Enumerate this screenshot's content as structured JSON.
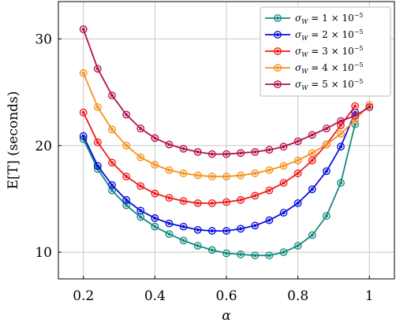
{
  "chart_data": {
    "type": "line",
    "xlabel": "α",
    "ylabel": "E[T] (seconds)",
    "xlim": [
      0.13,
      1.07
    ],
    "ylim": [
      7.5,
      33.5
    ],
    "xticks": [
      0.2,
      0.4,
      0.6,
      0.8,
      1
    ],
    "xtick_labels": [
      "0.2",
      "0.4",
      "0.6",
      "0.8",
      "1"
    ],
    "yticks": [
      10,
      20,
      30
    ],
    "ytick_labels": [
      "10",
      "20",
      "30"
    ],
    "grid": true,
    "legend_position": "top-right",
    "x": [
      0.2,
      0.24,
      0.28,
      0.32,
      0.36,
      0.4,
      0.44,
      0.48,
      0.52,
      0.56,
      0.6,
      0.64,
      0.68,
      0.72,
      0.76,
      0.8,
      0.84,
      0.88,
      0.92,
      0.96,
      1
    ],
    "series": [
      {
        "name": "σ_W = 1 × 10^−5",
        "legend": {
          "base": "σ",
          "sub": "W",
          "mid": " = 1 × 10",
          "sup": "−5"
        },
        "color": "#138a80",
        "values": [
          20.6,
          17.8,
          15.8,
          14.4,
          13.3,
          12.4,
          11.7,
          11.1,
          10.6,
          10.2,
          9.9,
          9.8,
          9.7,
          9.7,
          10.0,
          10.6,
          11.6,
          13.4,
          16.5,
          22.0,
          null
        ]
      },
      {
        "name": "σ_W = 2 × 10^−5",
        "legend": {
          "base": "σ",
          "sub": "W",
          "mid": " = 2 × 10",
          "sup": "−5"
        },
        "color": "#0a10dc",
        "values": [
          20.9,
          18.1,
          16.3,
          14.9,
          13.9,
          13.2,
          12.7,
          12.4,
          12.1,
          12.0,
          12.0,
          12.2,
          12.5,
          13.0,
          13.7,
          14.6,
          15.9,
          17.6,
          19.9,
          23.1,
          null
        ]
      },
      {
        "name": "σ_W = 3 × 10^−5",
        "legend": {
          "base": "σ",
          "sub": "W",
          "mid": " = 3 × 10",
          "sup": "−5"
        },
        "color": "#ee1c1c",
        "values": [
          23.1,
          20.3,
          18.4,
          17.1,
          16.2,
          15.5,
          15.1,
          14.8,
          14.6,
          14.6,
          14.7,
          14.9,
          15.3,
          15.8,
          16.5,
          17.4,
          18.6,
          20.1,
          21.9,
          23.7,
          null
        ]
      },
      {
        "name": "σ_W = 4 × 10^−5",
        "legend": {
          "base": "σ",
          "sub": "W",
          "mid": " = 4 × 10",
          "sup": "−5"
        },
        "color": "#f5911c",
        "values": [
          26.8,
          23.6,
          21.5,
          20.0,
          18.9,
          18.2,
          17.7,
          17.4,
          17.2,
          17.1,
          17.1,
          17.2,
          17.4,
          17.7,
          18.1,
          18.6,
          19.3,
          20.1,
          21.1,
          22.4,
          23.8
        ]
      },
      {
        "name": "σ_W = 5 × 10^−5",
        "legend": {
          "base": "σ",
          "sub": "W",
          "mid": " = 5 × 10",
          "sup": "−5"
        },
        "color": "#b3124e",
        "values": [
          30.9,
          27.2,
          24.7,
          22.9,
          21.6,
          20.7,
          20.1,
          19.7,
          19.4,
          19.2,
          19.2,
          19.3,
          19.4,
          19.6,
          19.9,
          20.4,
          21.0,
          21.6,
          22.3,
          22.8,
          23.6
        ]
      }
    ]
  }
}
